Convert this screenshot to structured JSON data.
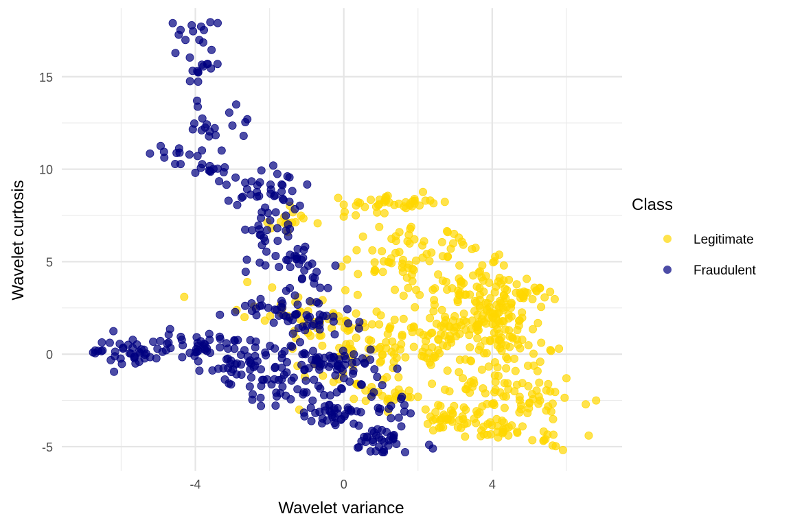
{
  "chart_data": {
    "type": "scatter",
    "title": "",
    "xlabel": "Wavelet variance",
    "ylabel": "Wavelet curtosis",
    "xlim": [
      -7.6,
      7.5
    ],
    "ylim": [
      -6.3,
      18.7
    ],
    "x_ticks": [
      -4,
      0,
      4
    ],
    "x_tick_labels": [
      "-4",
      "0",
      "4"
    ],
    "x_minor_gridlines": [
      -6,
      -2,
      2,
      6
    ],
    "y_ticks": [
      -5,
      0,
      5,
      10,
      15
    ],
    "y_tick_labels": [
      "-5",
      "0",
      "5",
      "10",
      "15"
    ],
    "y_minor_gridlines": [
      -2.5,
      2.5,
      7.5,
      12.5
    ],
    "grid": true,
    "legend": {
      "title": "Class",
      "position": "right",
      "entries": [
        {
          "label": "Legitimate",
          "color": "#FFD700"
        },
        {
          "label": "Fraudulent",
          "color": "#000080"
        }
      ]
    },
    "point_alpha": 0.7,
    "series": [
      {
        "name": "Legitimate",
        "color": "#FFD700",
        "clusters": [
          {
            "cx": 1.6,
            "cy": 8.2,
            "sx": 0.5,
            "sy": 0.25,
            "n": 30
          },
          {
            "cx": 0.3,
            "cy": 8.0,
            "sx": 0.3,
            "sy": 0.3,
            "n": 10
          },
          {
            "cx": -1.2,
            "cy": 7.0,
            "sx": 0.4,
            "sy": 0.5,
            "n": 14
          },
          {
            "cx": 2.2,
            "cy": 5.5,
            "sx": 0.9,
            "sy": 0.8,
            "n": 45
          },
          {
            "cx": 1.1,
            "cy": 4.6,
            "sx": 0.6,
            "sy": 0.5,
            "n": 20
          },
          {
            "cx": 4.0,
            "cy": 2.0,
            "sx": 0.6,
            "sy": 1.1,
            "n": 110
          },
          {
            "cx": 3.2,
            "cy": 3.6,
            "sx": 0.6,
            "sy": 0.6,
            "n": 40
          },
          {
            "cx": 4.7,
            "cy": 3.3,
            "sx": 0.4,
            "sy": 0.4,
            "n": 18
          },
          {
            "cx": 2.5,
            "cy": 1.0,
            "sx": 0.8,
            "sy": 0.9,
            "n": 70
          },
          {
            "cx": 1.0,
            "cy": 0.5,
            "sx": 0.8,
            "sy": 0.9,
            "n": 55
          },
          {
            "cx": -1.2,
            "cy": 1.8,
            "sx": 0.7,
            "sy": 0.8,
            "n": 35
          },
          {
            "cx": 0.0,
            "cy": -0.8,
            "sx": 0.5,
            "sy": 0.8,
            "n": 18
          },
          {
            "cx": 4.8,
            "cy": -0.4,
            "sx": 0.5,
            "sy": 0.6,
            "n": 20
          },
          {
            "cx": 3.9,
            "cy": -2.0,
            "sx": 0.5,
            "sy": 0.6,
            "n": 35
          },
          {
            "cx": 5.3,
            "cy": -2.5,
            "sx": 0.5,
            "sy": 0.5,
            "n": 25
          },
          {
            "cx": 2.9,
            "cy": -3.3,
            "sx": 0.5,
            "sy": 0.4,
            "n": 35
          },
          {
            "cx": 4.1,
            "cy": -4.0,
            "sx": 0.5,
            "sy": 0.35,
            "n": 30
          },
          {
            "cx": 5.5,
            "cy": -4.5,
            "sx": 0.3,
            "sy": 0.3,
            "n": 10
          },
          {
            "cx": 1.4,
            "cy": -2.4,
            "sx": 0.5,
            "sy": 0.6,
            "n": 25
          }
        ],
        "points": [
          [
            -4.3,
            3.1
          ],
          [
            -2.6,
            3.9
          ],
          [
            -1.2,
            -3.0
          ],
          [
            2.0,
            -2.3
          ],
          [
            6.0,
            -1.3
          ],
          [
            6.8,
            -2.5
          ],
          [
            6.6,
            -4.4
          ],
          [
            5.8,
            0.3
          ],
          [
            5.2,
            3.4
          ],
          [
            2.8,
            6.6
          ],
          [
            3.1,
            6.3
          ],
          [
            2.2,
            8.3
          ]
        ]
      },
      {
        "name": "Fraudulent",
        "color": "#000080",
        "clusters": [
          {
            "cx": -4.1,
            "cy": 16.9,
            "sx": 0.4,
            "sy": 0.9,
            "n": 18
          },
          {
            "cx": -3.8,
            "cy": 15.3,
            "sx": 0.3,
            "sy": 0.4,
            "n": 8
          },
          {
            "cx": -3.6,
            "cy": 12.5,
            "sx": 0.4,
            "sy": 0.6,
            "n": 16
          },
          {
            "cx": -4.6,
            "cy": 10.9,
            "sx": 0.4,
            "sy": 0.4,
            "n": 12
          },
          {
            "cx": -3.4,
            "cy": 10.2,
            "sx": 0.3,
            "sy": 0.3,
            "n": 10
          },
          {
            "cx": -2.3,
            "cy": 8.8,
            "sx": 0.6,
            "sy": 0.6,
            "n": 35
          },
          {
            "cx": -1.9,
            "cy": 6.8,
            "sx": 0.5,
            "sy": 0.7,
            "n": 25
          },
          {
            "cx": -1.6,
            "cy": 5.2,
            "sx": 0.5,
            "sy": 0.6,
            "n": 22
          },
          {
            "cx": -0.9,
            "cy": 4.0,
            "sx": 0.4,
            "sy": 0.5,
            "n": 12
          },
          {
            "cx": -2.0,
            "cy": 2.4,
            "sx": 0.7,
            "sy": 0.4,
            "n": 30
          },
          {
            "cx": -0.6,
            "cy": 1.8,
            "sx": 0.6,
            "sy": 0.5,
            "n": 25
          },
          {
            "cx": -5.8,
            "cy": 0.1,
            "sx": 0.6,
            "sy": 0.4,
            "n": 40
          },
          {
            "cx": -3.8,
            "cy": 0.4,
            "sx": 0.6,
            "sy": 0.4,
            "n": 40
          },
          {
            "cx": -2.5,
            "cy": -0.6,
            "sx": 0.6,
            "sy": 0.6,
            "n": 45
          },
          {
            "cx": -0.6,
            "cy": -0.3,
            "sx": 0.5,
            "sy": 0.4,
            "n": 40
          },
          {
            "cx": -1.5,
            "cy": -1.8,
            "sx": 0.6,
            "sy": 0.6,
            "n": 40
          },
          {
            "cx": -0.4,
            "cy": -3.3,
            "sx": 0.4,
            "sy": 0.4,
            "n": 30
          },
          {
            "cx": 0.8,
            "cy": -4.7,
            "sx": 0.5,
            "sy": 0.4,
            "n": 35
          },
          {
            "cx": 0.6,
            "cy": -1.5,
            "sx": 0.5,
            "sy": 0.7,
            "n": 25
          },
          {
            "cx": 1.2,
            "cy": -2.9,
            "sx": 0.4,
            "sy": 0.5,
            "n": 12
          }
        ],
        "points": [
          [
            -6.7,
            0.2
          ],
          [
            -6.5,
            0.2
          ],
          [
            -3.4,
            17.9
          ],
          [
            -2.9,
            13.5
          ],
          [
            -2.6,
            12.7
          ],
          [
            -1.9,
            10.2
          ],
          [
            -4.0,
            9.8
          ],
          [
            1.8,
            -3.2
          ],
          [
            2.3,
            -4.9
          ],
          [
            2.4,
            -5.1
          ],
          [
            -2.7,
            11.8
          ]
        ]
      }
    ]
  }
}
